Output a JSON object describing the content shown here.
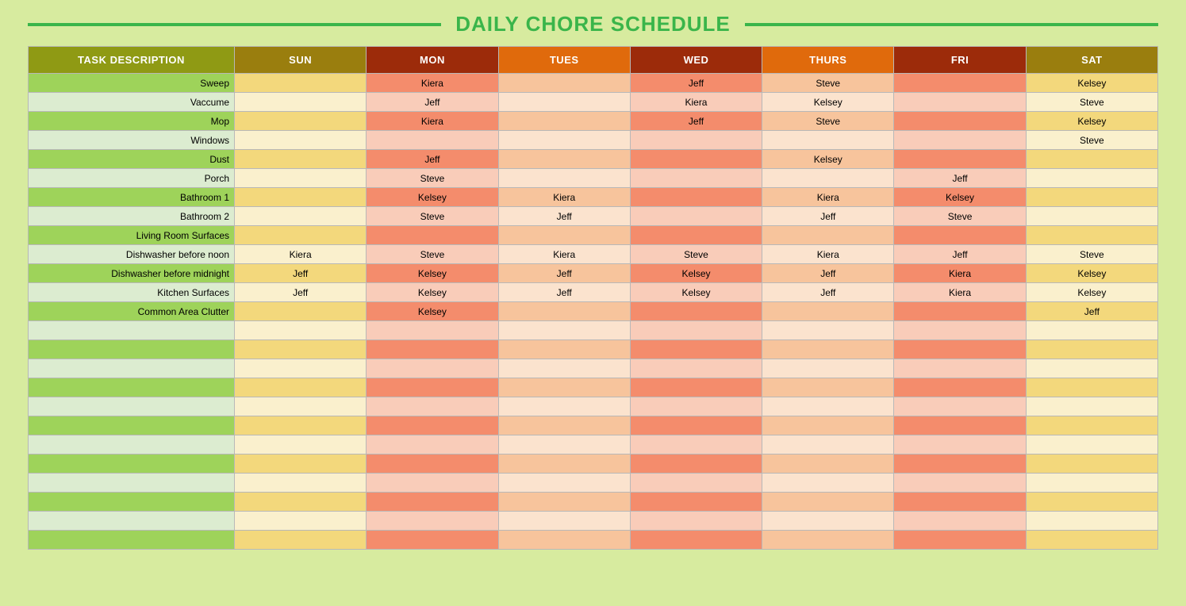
{
  "title": "DAILY CHORE SCHEDULE",
  "columns": [
    {
      "key": "task",
      "label": "TASK DESCRIPTION",
      "header_bg": "#8f9a14",
      "col_class": "task-cell"
    },
    {
      "key": "sun",
      "label": "SUN",
      "header_bg": "#9a7e0e",
      "col_class": "c-sun"
    },
    {
      "key": "mon",
      "label": "MON",
      "header_bg": "#9c2b0a",
      "col_class": "c-mon"
    },
    {
      "key": "tues",
      "label": "TUES",
      "header_bg": "#e06a0c",
      "col_class": "c-tues"
    },
    {
      "key": "wed",
      "label": "WED",
      "header_bg": "#9c2b0a",
      "col_class": "c-wed"
    },
    {
      "key": "thurs",
      "label": "THURS",
      "header_bg": "#e06a0c",
      "col_class": "c-thurs"
    },
    {
      "key": "fri",
      "label": "FRI",
      "header_bg": "#9c2b0a",
      "col_class": "c-fri"
    },
    {
      "key": "sat",
      "label": "SAT",
      "header_bg": "#9a7e0e",
      "col_class": "c-sat"
    }
  ],
  "rows": [
    {
      "task": "Sweep",
      "sun": "",
      "mon": "Kiera",
      "tues": "",
      "wed": "Jeff",
      "thurs": "Steve",
      "fri": "",
      "sat": "Kelsey"
    },
    {
      "task": "Vaccume",
      "sun": "",
      "mon": "Jeff",
      "tues": "",
      "wed": "Kiera",
      "thurs": "Kelsey",
      "fri": "",
      "sat": "Steve"
    },
    {
      "task": "Mop",
      "sun": "",
      "mon": "Kiera",
      "tues": "",
      "wed": "Jeff",
      "thurs": "Steve",
      "fri": "",
      "sat": "Kelsey"
    },
    {
      "task": "Windows",
      "sun": "",
      "mon": "",
      "tues": "",
      "wed": "",
      "thurs": "",
      "fri": "",
      "sat": "Steve"
    },
    {
      "task": "Dust",
      "sun": "",
      "mon": "Jeff",
      "tues": "",
      "wed": "",
      "thurs": "Kelsey",
      "fri": "",
      "sat": ""
    },
    {
      "task": "Porch",
      "sun": "",
      "mon": "Steve",
      "tues": "",
      "wed": "",
      "thurs": "",
      "fri": "Jeff",
      "sat": ""
    },
    {
      "task": "Bathroom 1",
      "sun": "",
      "mon": "Kelsey",
      "tues": "Kiera",
      "wed": "",
      "thurs": "Kiera",
      "fri": "Kelsey",
      "sat": ""
    },
    {
      "task": "Bathroom 2",
      "sun": "",
      "mon": "Steve",
      "tues": "Jeff",
      "wed": "",
      "thurs": "Jeff",
      "fri": "Steve",
      "sat": ""
    },
    {
      "task": "Living Room Surfaces",
      "sun": "",
      "mon": "",
      "tues": "",
      "wed": "",
      "thurs": "",
      "fri": "",
      "sat": ""
    },
    {
      "task": "Dishwasher before noon",
      "sun": "Kiera",
      "mon": "Steve",
      "tues": "Kiera",
      "wed": "Steve",
      "thurs": "Kiera",
      "fri": "Jeff",
      "sat": "Steve"
    },
    {
      "task": "Dishwasher before midnight",
      "sun": "Jeff",
      "mon": "Kelsey",
      "tues": "Jeff",
      "wed": "Kelsey",
      "thurs": "Jeff",
      "fri": "Kiera",
      "sat": "Kelsey"
    },
    {
      "task": "Kitchen Surfaces",
      "sun": "Jeff",
      "mon": "Kelsey",
      "tues": "Jeff",
      "wed": "Kelsey",
      "thurs": "Jeff",
      "fri": "Kiera",
      "sat": "Kelsey"
    },
    {
      "task": "Common Area Clutter",
      "sun": "",
      "mon": "Kelsey",
      "tues": "",
      "wed": "",
      "thurs": "",
      "fri": "",
      "sat": "Jeff"
    },
    {
      "task": "",
      "sun": "",
      "mon": "",
      "tues": "",
      "wed": "",
      "thurs": "",
      "fri": "",
      "sat": ""
    },
    {
      "task": "",
      "sun": "",
      "mon": "",
      "tues": "",
      "wed": "",
      "thurs": "",
      "fri": "",
      "sat": ""
    },
    {
      "task": "",
      "sun": "",
      "mon": "",
      "tues": "",
      "wed": "",
      "thurs": "",
      "fri": "",
      "sat": ""
    },
    {
      "task": "",
      "sun": "",
      "mon": "",
      "tues": "",
      "wed": "",
      "thurs": "",
      "fri": "",
      "sat": ""
    },
    {
      "task": "",
      "sun": "",
      "mon": "",
      "tues": "",
      "wed": "",
      "thurs": "",
      "fri": "",
      "sat": ""
    },
    {
      "task": "",
      "sun": "",
      "mon": "",
      "tues": "",
      "wed": "",
      "thurs": "",
      "fri": "",
      "sat": ""
    },
    {
      "task": "",
      "sun": "",
      "mon": "",
      "tues": "",
      "wed": "",
      "thurs": "",
      "fri": "",
      "sat": ""
    },
    {
      "task": "",
      "sun": "",
      "mon": "",
      "tues": "",
      "wed": "",
      "thurs": "",
      "fri": "",
      "sat": ""
    },
    {
      "task": "",
      "sun": "",
      "mon": "",
      "tues": "",
      "wed": "",
      "thurs": "",
      "fri": "",
      "sat": ""
    },
    {
      "task": "",
      "sun": "",
      "mon": "",
      "tues": "",
      "wed": "",
      "thurs": "",
      "fri": "",
      "sat": ""
    },
    {
      "task": "",
      "sun": "",
      "mon": "",
      "tues": "",
      "wed": "",
      "thurs": "",
      "fri": "",
      "sat": ""
    },
    {
      "task": "",
      "sun": "",
      "mon": "",
      "tues": "",
      "wed": "",
      "thurs": "",
      "fri": "",
      "sat": ""
    }
  ]
}
